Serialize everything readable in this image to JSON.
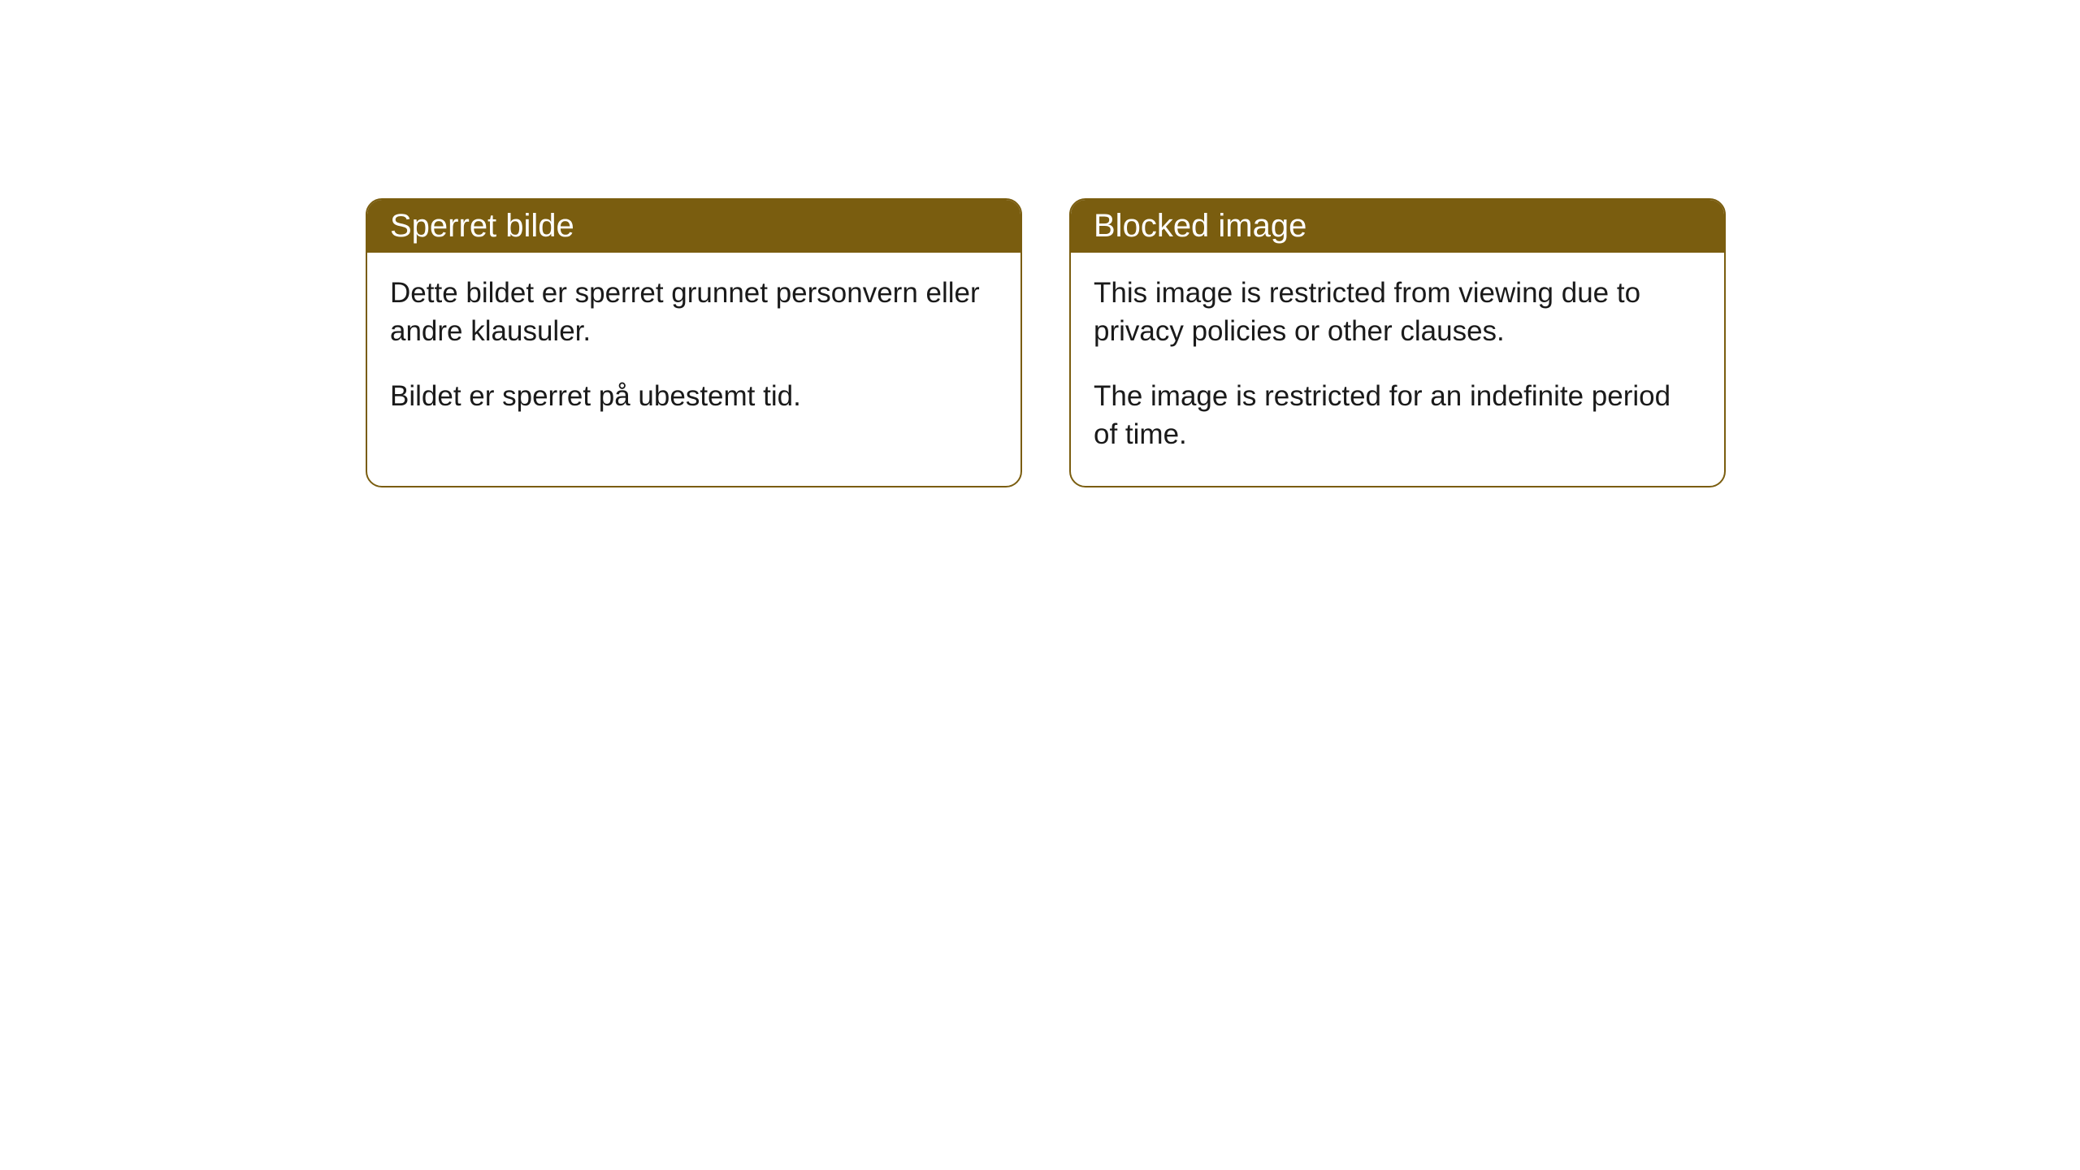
{
  "cards": [
    {
      "title": "Sperret bilde",
      "paragraph1": "Dette bildet er sperret grunnet personvern eller andre klausuler.",
      "paragraph2": "Bildet er sperret på ubestemt tid."
    },
    {
      "title": "Blocked image",
      "paragraph1": "This image is restricted from viewing due to privacy policies or other clauses.",
      "paragraph2": "The image is restricted for an indefinite period of time."
    }
  ],
  "colors": {
    "header_bg": "#7a5d0f",
    "header_text": "#ffffff",
    "body_text": "#1a1a1a",
    "card_border": "#7a5d0f",
    "page_bg": "#ffffff"
  }
}
